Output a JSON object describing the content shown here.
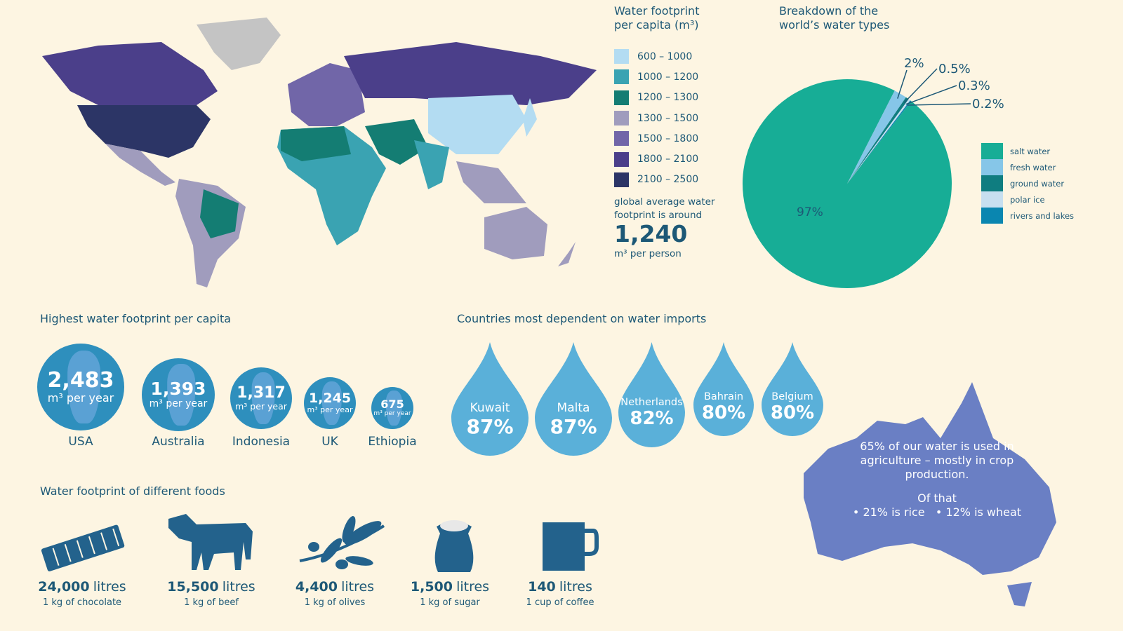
{
  "map": {
    "title": "Water footprint per capita (m³)",
    "legend": [
      {
        "label": "600 – 1000",
        "color": "#b3dcf2"
      },
      {
        "label": "1000 – 1200",
        "color": "#3aa3b2"
      },
      {
        "label": "1200 – 1300",
        "color": "#147d73"
      },
      {
        "label": "1300 – 1500",
        "color": "#a09cbd"
      },
      {
        "label": "1500 – 1800",
        "color": "#7166a8"
      },
      {
        "label": "1800 – 2100",
        "color": "#4b3f8a"
      },
      {
        "label": "2100 – 2500",
        "color": "#2c3566"
      }
    ],
    "avg_note": "global average water footprint is around",
    "avg_value": "1,240",
    "avg_unit": "m³ per person"
  },
  "chart_data": {
    "type": "pie",
    "title": "Breakdown of the world’s water types",
    "legend_position": "right",
    "slices": [
      {
        "name": "salt water",
        "value": 97,
        "label": "97%",
        "color": "#17ad96"
      },
      {
        "name": "fresh water",
        "value": 2,
        "label": "2%",
        "color": "#86c6e8"
      },
      {
        "name": "ground water",
        "value": 0.5,
        "label": "0.5%",
        "color": "#0f7d80"
      },
      {
        "name": "polar ice",
        "value": 0.3,
        "label": "0.3%",
        "color": "#c7dff0"
      },
      {
        "name": "rivers and lakes",
        "value": 0.2,
        "label": "0.2%",
        "color": "#0a86b0"
      }
    ]
  },
  "footprint": {
    "title": "Highest water footprint per capita",
    "unit": "m³ per year",
    "countries": [
      {
        "name": "USA",
        "value": "2,483"
      },
      {
        "name": "Australia",
        "value": "1,393"
      },
      {
        "name": "Indonesia",
        "value": "1,317"
      },
      {
        "name": "UK",
        "value": "1,245"
      },
      {
        "name": "Ethiopia",
        "value": "675"
      }
    ]
  },
  "imports": {
    "title": "Countries most dependent on water imports",
    "countries": [
      {
        "name": "Kuwait",
        "value": "87%"
      },
      {
        "name": "Malta",
        "value": "87%"
      },
      {
        "name": "Netherlands",
        "value": "82%"
      },
      {
        "name": "Bahrain",
        "value": "80%"
      },
      {
        "name": "Belgium",
        "value": "80%"
      }
    ]
  },
  "foods": {
    "title": "Water footprint of different foods",
    "unit": "litres",
    "items": [
      {
        "icon": "chocolate-bar-icon",
        "amount": "24,000",
        "desc": "1 kg of chocolate"
      },
      {
        "icon": "cow-icon",
        "amount": "15,500",
        "desc": "1 kg of beef"
      },
      {
        "icon": "olive-branch-icon",
        "amount": "4,400",
        "desc": "1 kg of olives"
      },
      {
        "icon": "sugar-sack-icon",
        "amount": "1,500",
        "desc": "1 kg of sugar"
      },
      {
        "icon": "coffee-cup-icon",
        "amount": "140",
        "desc": "1 cup of coffee"
      }
    ]
  },
  "australia": {
    "line1": "65% of our water is used in agriculture – mostly in crop production.",
    "line2": "Of that",
    "rice": "• 21% is rice",
    "wheat": "• 12% is wheat",
    "color": "#6a7fc4"
  }
}
